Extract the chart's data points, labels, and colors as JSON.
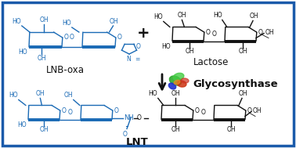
{
  "border_color": "#1a5aaa",
  "background_color": "#ffffff",
  "blue_color": "#1a6ab5",
  "black_color": "#111111",
  "label_lnb": "LNB-oxa",
  "label_lactose": "Lactose",
  "label_enzyme": "Glycosynthase",
  "label_lnt": "LNT",
  "font_size_labels": 8.5,
  "font_size_enzyme": 9.5,
  "font_size_sub": 5.5,
  "font_size_lnt": 9.5
}
